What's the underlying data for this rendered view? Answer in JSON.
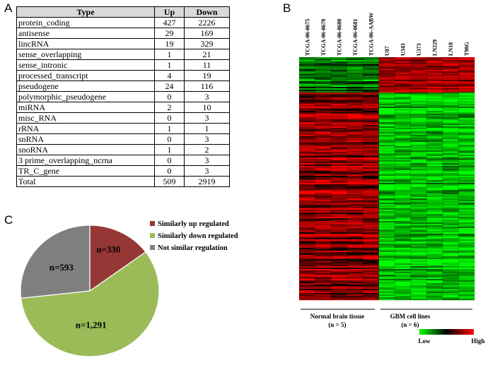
{
  "panels": {
    "a": "A",
    "b": "B",
    "c": "C"
  },
  "table": {
    "headers": [
      "Type",
      "Up",
      "Down"
    ],
    "rows": [
      [
        "protein_coding",
        "427",
        "2226"
      ],
      [
        "antisense",
        "29",
        "169"
      ],
      [
        "lincRNA",
        "19",
        "329"
      ],
      [
        "sense_overlapping",
        "1",
        "21"
      ],
      [
        "sense_intronic",
        "1",
        "11"
      ],
      [
        "processed_transcript",
        "4",
        "19"
      ],
      [
        "pseudogene",
        "24",
        "116"
      ],
      [
        "polymorphic_pseudogene",
        "0",
        "3"
      ],
      [
        "miRNA",
        "2",
        "10"
      ],
      [
        "misc_RNA",
        "0",
        "3"
      ],
      [
        "rRNA",
        "1",
        "1"
      ],
      [
        "snRNA",
        "0",
        "3"
      ],
      [
        "snoRNA",
        "1",
        "2"
      ],
      [
        "3 prime_overlapping_ncrna",
        "0",
        "3"
      ],
      [
        "TR_C_gene",
        "0",
        "3"
      ],
      [
        "Total",
        "509",
        "2919"
      ]
    ]
  },
  "heatmap": {
    "columns": [
      "TCGA-06-0675",
      "TCGA-06-0678",
      "TCGA-06-0680",
      "TCGA-06-0681",
      "TCGA-06-AABW",
      "U87",
      "U343",
      "U373",
      "LN229",
      "LN18",
      "T98G"
    ],
    "group1_label": "Normal brain tissue",
    "group1_n": "(n = 5)",
    "group2_label": "GBM cell lines",
    "group2_n": "(n = 6)",
    "scale_low": "Low",
    "scale_high": "High",
    "colors": {
      "low": "#00ff00",
      "mid": "#000000",
      "high": "#ff0000"
    }
  },
  "chart_data": {
    "type": "pie",
    "labels": [
      "Similarly up regulated",
      "Similarly down regulated",
      "Not similar regulation"
    ],
    "values": [
      330,
      1291,
      593
    ],
    "slice_labels": [
      "n=330",
      "n=1,291",
      "n=593"
    ],
    "colors": [
      "#953735",
      "#9bbb59",
      "#7f7f7f"
    ],
    "legend_placement": "top-right"
  }
}
